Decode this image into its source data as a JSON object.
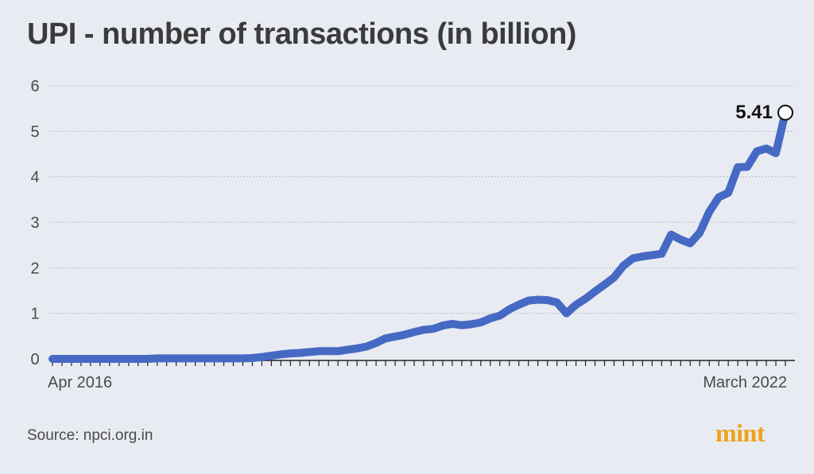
{
  "title": "UPI - number of transactions (in billion)",
  "source": "Source: npci.org.in",
  "logo": "mint",
  "colors": {
    "line": "#4669c4",
    "grid": "#b9bcc3",
    "axis": "#222222",
    "background": "#e8ebf1",
    "logo": "#f0a21a"
  },
  "chart_data": {
    "type": "line",
    "title": "UPI - number of transactions (in billion)",
    "xlabel": "",
    "ylabel": "",
    "ylim": [
      0,
      6
    ],
    "y_ticks": [
      "0",
      "1",
      "2",
      "3",
      "4",
      "5",
      "6"
    ],
    "x_tick_labels": {
      "start": "Apr 2016",
      "end": "March 2022"
    },
    "grid": true,
    "annotation": {
      "text": "5.41",
      "value": 5.41
    },
    "series": [
      {
        "values": [
          0.0,
          0.0,
          0.0,
          0.0,
          0.0,
          0.0,
          0.0,
          0.0,
          0.0,
          0.0,
          0.0,
          0.01,
          0.01,
          0.01,
          0.01,
          0.01,
          0.01,
          0.01,
          0.01,
          0.01,
          0.01,
          0.02,
          0.04,
          0.07,
          0.1,
          0.12,
          0.13,
          0.15,
          0.17,
          0.17,
          0.17,
          0.2,
          0.23,
          0.27,
          0.35,
          0.45,
          0.49,
          0.53,
          0.59,
          0.64,
          0.66,
          0.73,
          0.77,
          0.74,
          0.76,
          0.8,
          0.89,
          0.95,
          1.09,
          1.19,
          1.28,
          1.3,
          1.29,
          1.24,
          1.0,
          1.19,
          1.32,
          1.48,
          1.63,
          1.79,
          2.05,
          2.21,
          2.25,
          2.28,
          2.31,
          2.73,
          2.62,
          2.54,
          2.77,
          3.23,
          3.55,
          3.65,
          4.21,
          4.22,
          4.56,
          4.62,
          4.52,
          5.41
        ]
      }
    ]
  }
}
